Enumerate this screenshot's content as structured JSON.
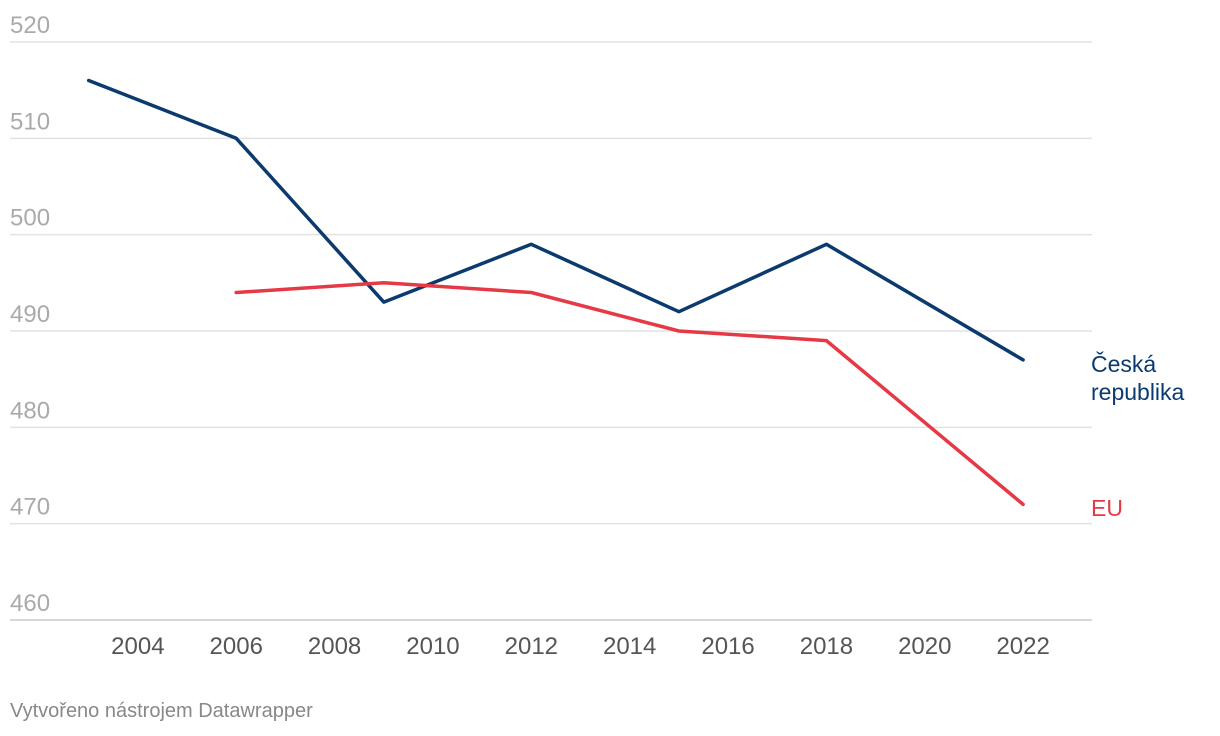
{
  "chart_data": {
    "type": "line",
    "y_ticks": [
      520,
      510,
      500,
      490,
      480,
      470,
      460
    ],
    "x_ticks": [
      2004,
      2006,
      2008,
      2010,
      2012,
      2014,
      2016,
      2018,
      2020,
      2022
    ],
    "ylim": [
      460,
      520
    ],
    "xlim": [
      2001.4,
      2023.4
    ],
    "grid": true,
    "series": [
      {
        "name": "Česká republika",
        "color": "#0b3a6e",
        "x": [
          2003,
          2006,
          2009,
          2012,
          2015,
          2018,
          2022
        ],
        "y": [
          516,
          510,
          493,
          499,
          492,
          499,
          487
        ]
      },
      {
        "name": "EU",
        "color": "#e63946",
        "x": [
          2006,
          2009,
          2012,
          2015,
          2018,
          2022
        ],
        "y": [
          494,
          495,
          494,
          490,
          489,
          472
        ]
      }
    ]
  },
  "labels": {
    "czech_line1": "Česká",
    "czech_line2": "republika",
    "eu": "EU"
  },
  "credit": "Vytvořeno nástrojem Datawrapper"
}
